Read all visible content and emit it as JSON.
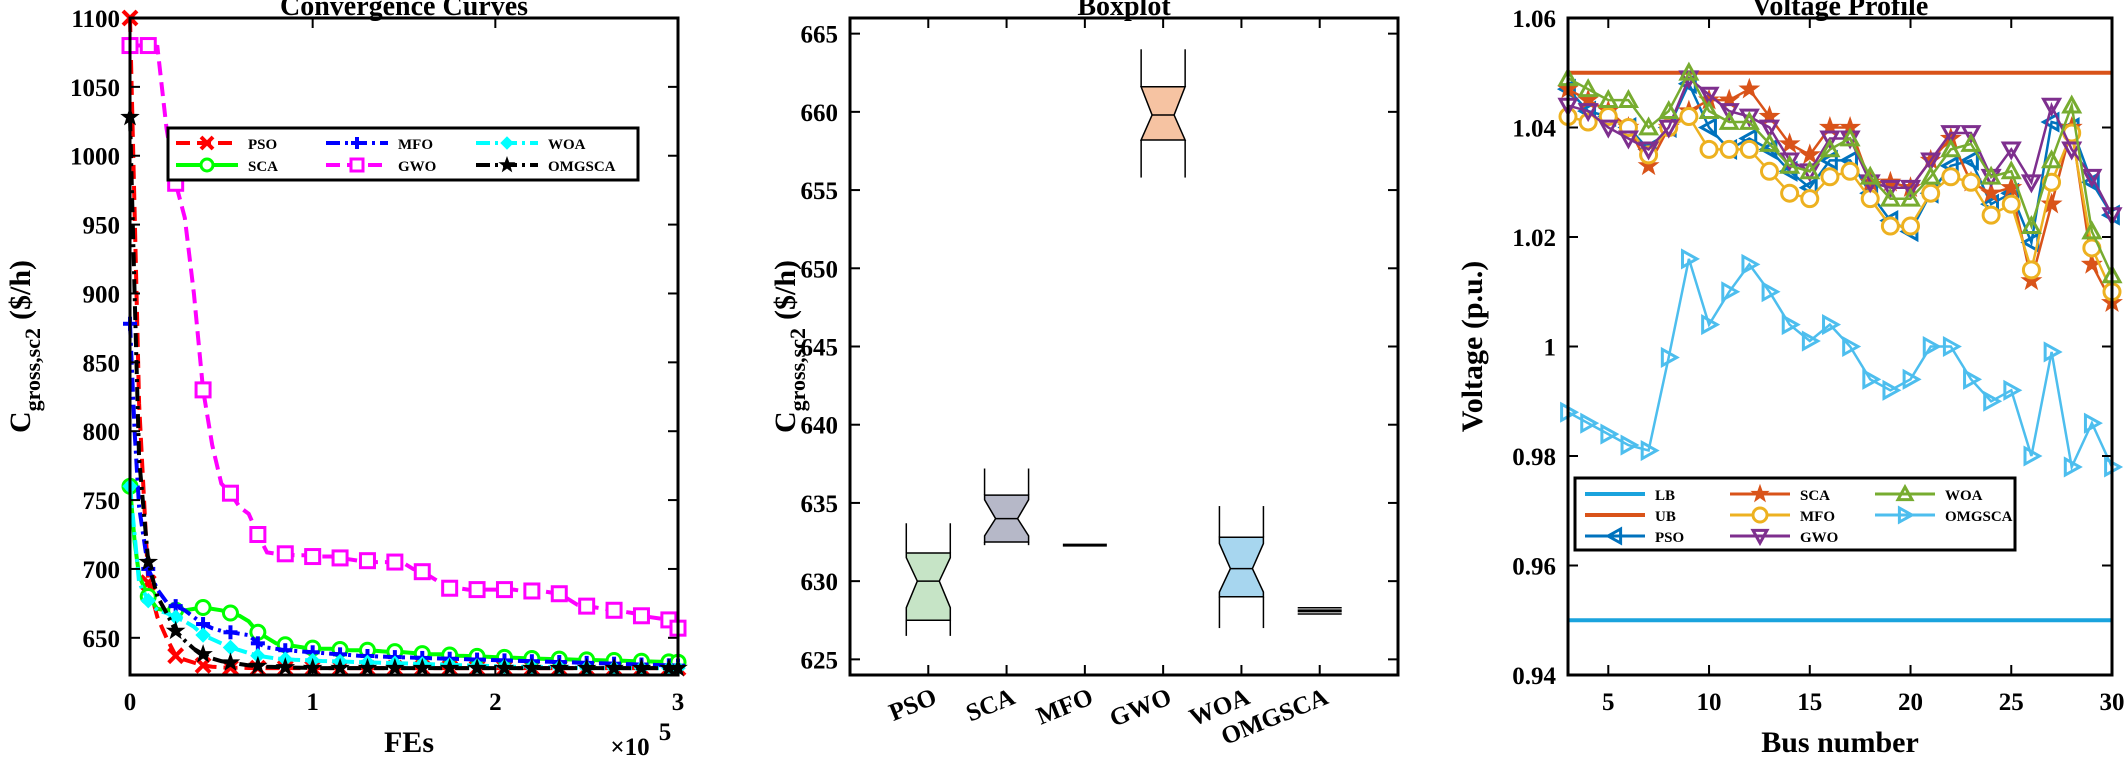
{
  "chart_data": [
    {
      "type": "line",
      "title": "Convergence Curves",
      "xlabel": "FEs",
      "ylabel_main": "C",
      "ylabel_sub": "gross,sc2",
      "ylabel_unit": "($/h)",
      "x_exponent_base": "×10",
      "x_exponent": "5",
      "xlim": [
        0,
        3
      ],
      "ylim": [
        623,
        1100
      ],
      "xticks": [
        0,
        1,
        2,
        3
      ],
      "yticks": [
        650,
        700,
        750,
        800,
        850,
        900,
        950,
        1000,
        1050,
        1100
      ],
      "x": [
        0,
        0.025,
        0.05,
        0.1,
        0.15,
        0.2,
        0.25,
        0.3,
        0.35,
        0.4,
        0.45,
        0.5,
        0.55,
        0.6,
        0.65,
        0.7,
        0.75,
        0.8,
        0.85,
        0.9,
        0.95,
        1.0,
        1.05,
        1.1,
        1.15,
        1.2,
        1.25,
        1.3,
        1.35,
        1.4,
        1.45,
        1.5,
        1.55,
        1.6,
        1.65,
        1.7,
        1.75,
        1.8,
        1.85,
        1.9,
        1.95,
        2.0,
        2.05,
        2.1,
        2.15,
        2.2,
        2.25,
        2.3,
        2.35,
        2.4,
        2.45,
        2.5,
        2.55,
        2.6,
        2.65,
        2.7,
        2.75,
        2.8,
        2.85,
        2.9,
        2.95,
        3.0
      ],
      "legend_location": "upper-center",
      "series": [
        {
          "name": "PSO",
          "color": "#ff0000",
          "dash": "dash",
          "marker": "x",
          "values": [
            1100,
            960,
            820,
            690,
            665,
            650,
            637,
            634,
            632,
            630,
            629,
            628.5,
            628.3,
            628.2,
            628.1,
            628,
            628,
            628,
            628,
            628,
            628,
            628,
            628,
            628,
            628,
            628,
            628,
            628,
            628,
            628,
            628,
            628,
            628,
            628,
            628,
            628,
            628,
            628,
            628,
            628,
            628,
            628,
            628,
            628,
            628,
            628,
            628,
            628,
            628,
            628,
            628,
            628,
            628,
            628,
            628,
            628,
            628,
            628,
            628,
            628,
            628,
            628
          ]
        },
        {
          "name": "SCA",
          "color": "#00ff00",
          "dash": "solid",
          "marker": "circle",
          "values": [
            760,
            720,
            695,
            680,
            671,
            670,
            670,
            670,
            671,
            672,
            671,
            670,
            668,
            666,
            662,
            654,
            650,
            646,
            645,
            644,
            643,
            642.5,
            642,
            642,
            641.5,
            641,
            641,
            641,
            640.5,
            640,
            640,
            639.5,
            639,
            638.5,
            638,
            638,
            637.5,
            637,
            636.8,
            636.5,
            636.3,
            636,
            635.8,
            635.5,
            635.3,
            635,
            634.8,
            634.6,
            634.5,
            634.3,
            634.1,
            634,
            633.8,
            633.6,
            633.5,
            633.3,
            633.1,
            633,
            632.8,
            632.6,
            632.5,
            632.3
          ]
        },
        {
          "name": "MFO",
          "color": "#0000ff",
          "dash": "dashdot",
          "marker": "plus",
          "values": [
            878,
            800,
            745,
            700,
            685,
            676,
            673,
            670,
            665,
            660,
            657,
            655,
            654,
            653,
            652,
            646,
            643,
            642,
            641,
            640.5,
            640,
            639.5,
            639,
            638.5,
            638,
            637.5,
            637,
            636.8,
            636.5,
            636.3,
            636,
            635.8,
            635.6,
            635.4,
            635.2,
            635,
            634.8,
            634.6,
            634.4,
            634.2,
            634,
            633.8,
            633.6,
            633.4,
            633.2,
            633,
            632.8,
            632.6,
            632.4,
            632.2,
            632,
            631.8,
            631.6,
            631.4,
            631.2,
            631,
            630.8,
            630.6,
            630.4,
            630.2,
            630,
            629.8
          ]
        },
        {
          "name": "GWO",
          "color": "#ff00ff",
          "dash": "dash",
          "marker": "square",
          "values": [
            1080,
            1080,
            1080,
            1080,
            1079,
            1020,
            980,
            955,
            900,
            830,
            790,
            762,
            755,
            745,
            740,
            725,
            712,
            711,
            711,
            710,
            710,
            709,
            709,
            709,
            708,
            707,
            706,
            706,
            705,
            705,
            705,
            704,
            700,
            698,
            694,
            690,
            686,
            686,
            685,
            685,
            685,
            685,
            685,
            685,
            684,
            684,
            684,
            683,
            682,
            678,
            674,
            673,
            672,
            671,
            670,
            669,
            668,
            666,
            665,
            664,
            663,
            657
          ]
        },
        {
          "name": "WOA",
          "color": "#00ffff",
          "dash": "dashdot",
          "marker": "diamond",
          "values": [
            760,
            725,
            690,
            677,
            670,
            668,
            665,
            662,
            658,
            652,
            649,
            646,
            643,
            641,
            639,
            637,
            636,
            635,
            634.5,
            634,
            633.8,
            633.5,
            633.2,
            633,
            632.8,
            632.6,
            632.4,
            632.2,
            632,
            631.8,
            631.6,
            631.4,
            631.2,
            631,
            630.8,
            630.6,
            630.4,
            630.2,
            630,
            629.8,
            629.6,
            629.4,
            629.2,
            629,
            628.9,
            628.8,
            628.7,
            628.6,
            628.5,
            628.4,
            628.3,
            628.2,
            628.1,
            628,
            628,
            628,
            628,
            628,
            628,
            628,
            628,
            628
          ]
        },
        {
          "name": "OMGSCA",
          "color": "#000000",
          "dash": "dashdot",
          "marker": "star",
          "values": [
            1028,
            900,
            780,
            705,
            680,
            668,
            655,
            648,
            642,
            638,
            635,
            633,
            632,
            631,
            630,
            629.5,
            629,
            628.8,
            628.6,
            628.4,
            628.2,
            628,
            628,
            628,
            628,
            628,
            628,
            628,
            628,
            628,
            628,
            628,
            628,
            628,
            628,
            628,
            628,
            628,
            628,
            628,
            628,
            628,
            628,
            628,
            628,
            628,
            628,
            628,
            628,
            628,
            628,
            628,
            628,
            628,
            628,
            628,
            628,
            628,
            628,
            628,
            628,
            628
          ]
        }
      ]
    },
    {
      "type": "boxplot",
      "title": "Boxplot",
      "ylabel_main": "C",
      "ylabel_sub": "gross,sc2",
      "ylabel_unit": "($/h)",
      "ylim": [
        624,
        666
      ],
      "yticks": [
        625,
        630,
        635,
        640,
        645,
        650,
        655,
        660,
        665
      ],
      "categories": [
        "PSO",
        "SCA",
        "MFO",
        "GWO",
        "WOA",
        "OMGSCA"
      ],
      "boxes": [
        {
          "name": "PSO",
          "color": "#c6e4c6",
          "q1": 627.5,
          "median": 630,
          "q3": 631.8,
          "notch_low": 628.3,
          "notch_high": 631.5,
          "whisker_low": 626.5,
          "whisker_high": 633.7
        },
        {
          "name": "SCA",
          "color": "#b6b8c8",
          "q1": 632.5,
          "median": 634,
          "q3": 635.5,
          "notch_low": 632.9,
          "notch_high": 635.2,
          "whisker_low": 632.3,
          "whisker_high": 637.2
        },
        {
          "name": "MFO",
          "color": "#ffffff",
          "q1": 632.3,
          "median": 632.3,
          "q3": 632.3,
          "notch_low": 632.3,
          "notch_high": 632.3,
          "whisker_low": 632.3,
          "whisker_high": 632.3
        },
        {
          "name": "GWO",
          "color": "#f6c3a2",
          "q1": 658.2,
          "median": 659.8,
          "q3": 661.6,
          "notch_low": 658.2,
          "notch_high": 661.6,
          "whisker_low": 655.8,
          "whisker_high": 664
        },
        {
          "name": "WOA",
          "color": "#a7d6ef",
          "q1": 629,
          "median": 630.8,
          "q3": 632.8,
          "notch_low": 629.3,
          "notch_high": 632.4,
          "whisker_low": 627,
          "whisker_high": 634.8
        },
        {
          "name": "OMGSCA",
          "color": "#ffffff",
          "q1": 627.9,
          "median": 628.1,
          "q3": 628.3,
          "notch_low": 627.9,
          "notch_high": 628.3,
          "whisker_low": 627.9,
          "whisker_high": 628.3
        }
      ]
    },
    {
      "type": "line",
      "title": "Voltage Profile",
      "xlabel": "Bus number",
      "ylabel": "Voltage (p.u.)",
      "xlim": [
        3,
        30
      ],
      "ylim": [
        0.94,
        1.06
      ],
      "xticks": [
        5,
        10,
        15,
        20,
        25,
        30
      ],
      "yticks": [
        0.94,
        0.96,
        0.98,
        1.0,
        1.02,
        1.04,
        1.06
      ],
      "ytick_labels": [
        "0.94",
        "0.96",
        "0.98",
        "1",
        "1.02",
        "1.04",
        "1.06"
      ],
      "x": [
        3,
        4,
        5,
        6,
        7,
        8,
        9,
        10,
        11,
        12,
        13,
        14,
        15,
        16,
        17,
        18,
        19,
        20,
        21,
        22,
        23,
        24,
        25,
        26,
        27,
        28,
        29,
        30
      ],
      "legend_location": "lower-left",
      "series": [
        {
          "name": "LB",
          "color": "#1aa3dd",
          "marker": "none",
          "values": [
            0.95,
            0.95,
            0.95,
            0.95,
            0.95,
            0.95,
            0.95,
            0.95,
            0.95,
            0.95,
            0.95,
            0.95,
            0.95,
            0.95,
            0.95,
            0.95,
            0.95,
            0.95,
            0.95,
            0.95,
            0.95,
            0.95,
            0.95,
            0.95,
            0.95,
            0.95,
            0.95,
            0.95
          ]
        },
        {
          "name": "UB",
          "color": "#d95319",
          "marker": "none",
          "values": [
            1.05,
            1.05,
            1.05,
            1.05,
            1.05,
            1.05,
            1.05,
            1.05,
            1.05,
            1.05,
            1.05,
            1.05,
            1.05,
            1.05,
            1.05,
            1.05,
            1.05,
            1.05,
            1.05,
            1.05,
            1.05,
            1.05,
            1.05,
            1.05,
            1.05,
            1.05,
            1.05,
            1.05
          ]
        },
        {
          "name": "PSO",
          "color": "#0072bd",
          "marker": "triangle-left",
          "values": [
            1.047,
            1.043,
            1.042,
            1.04,
            1.036,
            1.04,
            1.048,
            1.04,
            1.036,
            1.038,
            1.036,
            1.032,
            1.029,
            1.034,
            1.034,
            1.028,
            1.023,
            1.021,
            1.028,
            1.033,
            1.034,
            1.026,
            1.028,
            1.019,
            1.041,
            1.04,
            1.03,
            1.024
          ]
        },
        {
          "name": "SCA",
          "color": "#d95319",
          "marker": "star",
          "values": [
            1.047,
            1.045,
            1.043,
            1.04,
            1.033,
            1.04,
            1.043,
            1.045,
            1.045,
            1.047,
            1.042,
            1.037,
            1.035,
            1.04,
            1.04,
            1.03,
            1.03,
            1.029,
            1.034,
            1.038,
            1.03,
            1.028,
            1.029,
            1.012,
            1.026,
            1.04,
            1.015,
            1.008
          ]
        },
        {
          "name": "MFO",
          "color": "#edb120",
          "marker": "circle",
          "values": [
            1.042,
            1.041,
            1.042,
            1.04,
            1.035,
            1.04,
            1.042,
            1.036,
            1.036,
            1.036,
            1.032,
            1.028,
            1.027,
            1.031,
            1.032,
            1.027,
            1.022,
            1.022,
            1.028,
            1.031,
            1.03,
            1.024,
            1.026,
            1.014,
            1.03,
            1.039,
            1.018,
            1.01
          ]
        },
        {
          "name": "GWO",
          "color": "#7e2f8e",
          "marker": "triangle-down",
          "values": [
            1.044,
            1.043,
            1.04,
            1.038,
            1.036,
            1.04,
            1.049,
            1.046,
            1.043,
            1.042,
            1.04,
            1.034,
            1.032,
            1.038,
            1.038,
            1.03,
            1.029,
            1.029,
            1.034,
            1.039,
            1.039,
            1.031,
            1.036,
            1.03,
            1.044,
            1.036,
            1.031,
            1.024
          ]
        },
        {
          "name": "WOA",
          "color": "#77ac30",
          "marker": "triangle-up",
          "values": [
            1.049,
            1.047,
            1.045,
            1.045,
            1.04,
            1.043,
            1.05,
            1.043,
            1.041,
            1.041,
            1.037,
            1.033,
            1.032,
            1.036,
            1.038,
            1.031,
            1.027,
            1.027,
            1.031,
            1.036,
            1.037,
            1.031,
            1.032,
            1.022,
            1.034,
            1.044,
            1.021,
            1.013
          ]
        },
        {
          "name": "OMGSCA",
          "color": "#4dbeee",
          "marker": "triangle-right",
          "values": [
            0.988,
            0.986,
            0.984,
            0.982,
            0.981,
            0.998,
            1.016,
            1.004,
            1.01,
            1.015,
            1.01,
            1.004,
            1.001,
            1.004,
            1.0,
            0.994,
            0.992,
            0.994,
            1.0,
            1.0,
            0.994,
            0.99,
            0.992,
            0.98,
            0.999,
            0.978,
            0.986,
            0.978
          ]
        }
      ]
    }
  ]
}
